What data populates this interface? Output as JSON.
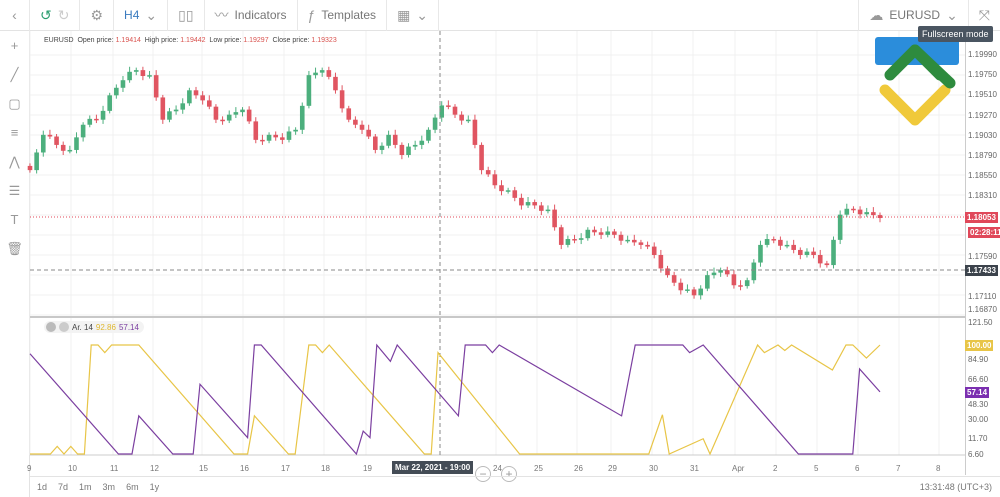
{
  "toolbar": {
    "timeframe": "H4",
    "indicators": "Indicators",
    "templates": "Templates",
    "symbol": "EURUSD",
    "tooltip": "Fullscreen mode"
  },
  "legend": {
    "symbol": "EURUSD",
    "open_label": "Open price:",
    "open": "1.19414",
    "high_label": "High price:",
    "high": "1.19442",
    "low_label": "Low price:",
    "low": "1.19297",
    "close_label": "Close price:",
    "close": "1.19323"
  },
  "price_axis": [
    "1.19990",
    "1.19750",
    "1.19510",
    "1.19270",
    "1.19030",
    "1.18790",
    "1.18550",
    "1.18310",
    "1.17590",
    "1.17110",
    "1.16870"
  ],
  "current_price": "1.18053",
  "countdown": "02:28:11",
  "crosshair_price": "1.17433",
  "crosshair_time": "Mar 22, 2021 - 19:00",
  "aroon": {
    "label": "Ar. 14",
    "up": "92.86",
    "down": "57.14",
    "up_tag": "100.00",
    "down_tag": "57.14",
    "axis": [
      "121.50",
      "84.90",
      "66.60",
      "48.30",
      "30.00",
      "11.70",
      "6.60"
    ],
    "up_color": "#e8c547",
    "down_color": "#7b3fa0",
    "up_series": [
      [
        0,
        0
      ],
      [
        3,
        0
      ],
      [
        4,
        7
      ],
      [
        5,
        0
      ],
      [
        6,
        7
      ],
      [
        7,
        0
      ],
      [
        8,
        0
      ],
      [
        9,
        100
      ],
      [
        10,
        100
      ],
      [
        11,
        93
      ],
      [
        12,
        100
      ],
      [
        16,
        100
      ],
      [
        30,
        0
      ],
      [
        32,
        0
      ],
      [
        33,
        35
      ],
      [
        38,
        0
      ],
      [
        39,
        0
      ],
      [
        41,
        100
      ],
      [
        42,
        100
      ],
      [
        43,
        93
      ],
      [
        44,
        100
      ],
      [
        58,
        0
      ],
      [
        59,
        0
      ],
      [
        60,
        93
      ],
      [
        72,
        0
      ],
      [
        91,
        0
      ],
      [
        93,
        36
      ],
      [
        94,
        0
      ],
      [
        99,
        14
      ],
      [
        100,
        0
      ],
      [
        107,
        100
      ],
      [
        108,
        93
      ],
      [
        110,
        100
      ],
      [
        111,
        95
      ],
      [
        112,
        100
      ],
      [
        118,
        77
      ],
      [
        120,
        100
      ],
      [
        121,
        100
      ],
      [
        123,
        88
      ],
      [
        125,
        100
      ]
    ],
    "down_series": [
      [
        0,
        92
      ],
      [
        13,
        0
      ],
      [
        15,
        0
      ],
      [
        16,
        35
      ],
      [
        21,
        0
      ],
      [
        24,
        0
      ],
      [
        25,
        64
      ],
      [
        32,
        15
      ],
      [
        33,
        100
      ],
      [
        34,
        100
      ],
      [
        48,
        0
      ],
      [
        49,
        21
      ],
      [
        50,
        15
      ],
      [
        51,
        100
      ],
      [
        53,
        85
      ],
      [
        54,
        100
      ],
      [
        63,
        35
      ],
      [
        64,
        100
      ],
      [
        67,
        100
      ],
      [
        68,
        93
      ],
      [
        69,
        100
      ],
      [
        87,
        35
      ],
      [
        89,
        100
      ],
      [
        96,
        100
      ],
      [
        97,
        93
      ],
      [
        99,
        100
      ],
      [
        113,
        0
      ],
      [
        121,
        0
      ],
      [
        122,
        78
      ],
      [
        125,
        57
      ]
    ]
  },
  "closes": [
    1.1862,
    1.1904,
    1.1892,
    1.1886,
    1.1916,
    1.1922,
    1.1951,
    1.1969,
    1.1981,
    1.1975,
    1.1922,
    1.1934,
    1.1957,
    1.1945,
    1.1922,
    1.1928,
    1.1934,
    1.1898,
    1.1904,
    1.1898,
    1.191,
    1.1975,
    1.1981,
    1.1957,
    1.1922,
    1.191,
    1.1886,
    1.1904,
    1.188,
    1.1892,
    1.191,
    1.1939,
    1.1928,
    1.1922,
    1.1862,
    1.1844,
    1.1838,
    1.182,
    1.182,
    1.1815,
    1.1773,
    1.1779,
    1.1791,
    1.1785,
    1.1785,
    1.1779,
    1.1773,
    1.1761,
    1.1737,
    1.1719,
    1.1713,
    1.1737,
    1.1743,
    1.1725,
    1.1731,
    1.1773,
    1.1779,
    1.1773,
    1.1761,
    1.1761,
    1.1749,
    1.1809,
    1.1815,
    1.1812,
    1.1805
  ],
  "colors": {
    "up": "#4caf7d",
    "down": "#e05561",
    "current": "#e0485a",
    "crosshair": "#3c434c"
  },
  "x_axis": [
    "9",
    "10",
    "11",
    "12",
    "15",
    "16",
    "17",
    "18",
    "19",
    "24",
    "25",
    "26",
    "29",
    "30",
    "31",
    "Apr",
    "2",
    "5",
    "6",
    "7",
    "8"
  ],
  "ranges": [
    "1d",
    "7d",
    "1m",
    "3m",
    "6m",
    "1y"
  ],
  "clock": "13:31:48 (UTC+3)"
}
